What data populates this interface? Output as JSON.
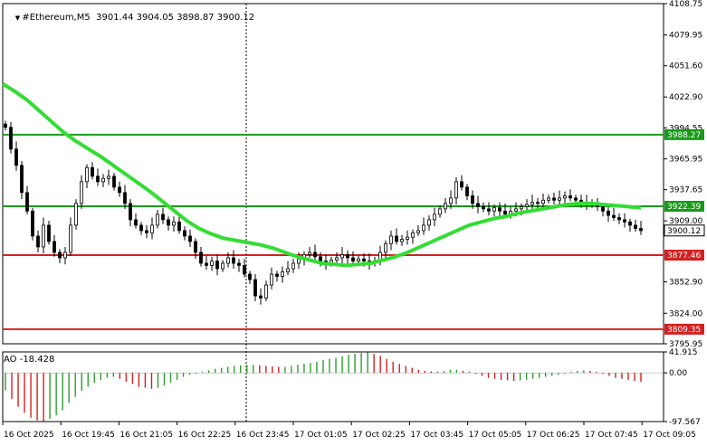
{
  "header": {
    "symbol": "#Ethereum,M5",
    "open": "3901.44",
    "high": "3904.05",
    "low": "3898.87",
    "close": "3900.12"
  },
  "ao_label": "AO -18.428",
  "price_axis": [
    "4108.75",
    "4079.95",
    "4051.60",
    "4022.90",
    "3994.55",
    "3965.95",
    "3937.65",
    "3909.00",
    "3852.90",
    "3824.00",
    "3795.95"
  ],
  "ao_axis": [
    "41.915",
    "0.00",
    "-97.567"
  ],
  "time_axis": [
    "16 Oct 2025",
    "16 Oct 19:45",
    "16 Oct 21:05",
    "16 Oct 22:25",
    "16 Oct 23:45",
    "17 Oct 01:05",
    "17 Oct 02:25",
    "17 Oct 03:45",
    "17 Oct 05:05",
    "17 Oct 06:25",
    "17 Oct 07:45",
    "17 Oct 09:05"
  ],
  "levels": [
    {
      "value": "3988.27",
      "color": "#1a9a1a"
    },
    {
      "value": "3922.39",
      "color": "#1a9a1a"
    },
    {
      "value": "3877.46",
      "color": "#d42020"
    },
    {
      "value": "3809.35",
      "color": "#d42020"
    }
  ],
  "current_price": "3900.12",
  "colors": {
    "bull": "#1a9a1a",
    "bear": "#d42020",
    "ma": "#33dd33",
    "ao_up": "#2e9e2e",
    "ao_down": "#d42020",
    "candle": "#000000"
  },
  "chart_data": {
    "type": "candlestick",
    "price_range": [
      3795.95,
      4108.75
    ],
    "ao_range": [
      -97.567,
      41.915
    ],
    "close_series": [
      3995,
      3975,
      3960,
      3935,
      3918,
      3895,
      3885,
      3905,
      3890,
      3880,
      3875,
      3880,
      3905,
      3925,
      3945,
      3958,
      3950,
      3945,
      3948,
      3950,
      3940,
      3935,
      3925,
      3910,
      3905,
      3900,
      3898,
      3905,
      3915,
      3910,
      3905,
      3908,
      3900,
      3895,
      3890,
      3880,
      3870,
      3868,
      3872,
      3865,
      3870,
      3875,
      3870,
      3868,
      3860,
      3855,
      3840,
      3838,
      3850,
      3860,
      3858,
      3862,
      3865,
      3870,
      3874,
      3878,
      3880,
      3876,
      3872,
      3870,
      3873,
      3875,
      3878,
      3875,
      3872,
      3874,
      3872,
      3870,
      3872,
      3880,
      3888,
      3895,
      3890,
      3892,
      3894,
      3898,
      3900,
      3905,
      3910,
      3915,
      3920,
      3925,
      3930,
      3945,
      3940,
      3932,
      3925,
      3922,
      3920,
      3918,
      3921,
      3918,
      3915,
      3918,
      3920,
      3922,
      3924,
      3926,
      3925,
      3928,
      3930,
      3928,
      3930,
      3932,
      3930,
      3928,
      3926,
      3925,
      3924,
      3922,
      3918,
      3914,
      3912,
      3910,
      3908,
      3905,
      3902,
      3900
    ],
    "ma_series": [
      4035,
      4028,
      4020,
      4010,
      4000,
      3990,
      3982,
      3975,
      3968,
      3960,
      3952,
      3944,
      3936,
      3927,
      3918,
      3909,
      3902,
      3897,
      3893,
      3891,
      3889,
      3887,
      3884,
      3880,
      3876,
      3873,
      3870,
      3869,
      3868,
      3869,
      3870,
      3873,
      3876,
      3880,
      3885,
      3890,
      3895,
      3900,
      3905,
      3908,
      3911,
      3913,
      3916,
      3918,
      3920,
      3922,
      3924,
      3925,
      3925,
      3924,
      3923,
      3922,
      3921
    ],
    "ao_series": [
      -35,
      -52,
      -68,
      -80,
      -90,
      -95,
      -97,
      -92,
      -85,
      -75,
      -60,
      -48,
      -36,
      -28,
      -20,
      -14,
      -10,
      -8,
      -12,
      -18,
      -22,
      -28,
      -30,
      -32,
      -30,
      -26,
      -20,
      -14,
      -8,
      -4,
      -2,
      2,
      5,
      8,
      10,
      12,
      14,
      15,
      16,
      16,
      15,
      14,
      13,
      12,
      12,
      14,
      16,
      18,
      20,
      22,
      26,
      28,
      30,
      33,
      36,
      38,
      40,
      41,
      38,
      34,
      28,
      22,
      18,
      14,
      10,
      6,
      4,
      3,
      2,
      4,
      6,
      6,
      4,
      2,
      -2,
      -6,
      -10,
      -12,
      -14,
      -15,
      -16,
      -15,
      -14,
      -12,
      -10,
      -8,
      -6,
      -4,
      -2,
      2,
      4,
      5,
      4,
      2,
      -2,
      -6,
      -10,
      -12,
      -14,
      -16,
      -18
    ]
  }
}
